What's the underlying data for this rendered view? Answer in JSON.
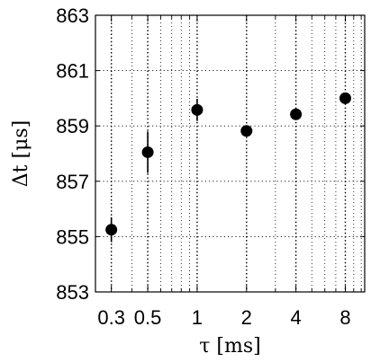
{
  "chart_data": {
    "type": "scatter",
    "title": "",
    "xlabel": "τ [ms]",
    "ylabel": "Δt [μs]",
    "x_scale": "log",
    "xlim": [
      0.24,
      10.5
    ],
    "ylim": [
      853,
      863
    ],
    "grid": true,
    "grid_style": "dotted",
    "x_ticks": [
      0.3,
      0.5,
      1,
      2,
      4,
      8
    ],
    "x_tick_labels": [
      "0.3",
      "0.5",
      "1",
      "2",
      "4",
      "8"
    ],
    "x_minor_ticks": [
      0.4,
      0.6,
      0.7,
      0.8,
      0.9,
      3,
      5,
      6,
      7,
      9,
      10
    ],
    "y_ticks": [
      853,
      855,
      857,
      859,
      861,
      863
    ],
    "y_tick_labels": [
      "853",
      "855",
      "857",
      "859",
      "861",
      "863"
    ],
    "series": [
      {
        "x": [
          0.3,
          0.5,
          1,
          2,
          4,
          8
        ],
        "y": [
          855.25,
          858.05,
          859.58,
          858.82,
          859.42,
          860.0
        ],
        "yerr": [
          0.45,
          0.75,
          0.4,
          0.2,
          0.2,
          0.2
        ],
        "color": "#000000",
        "marker": "circle"
      }
    ]
  }
}
